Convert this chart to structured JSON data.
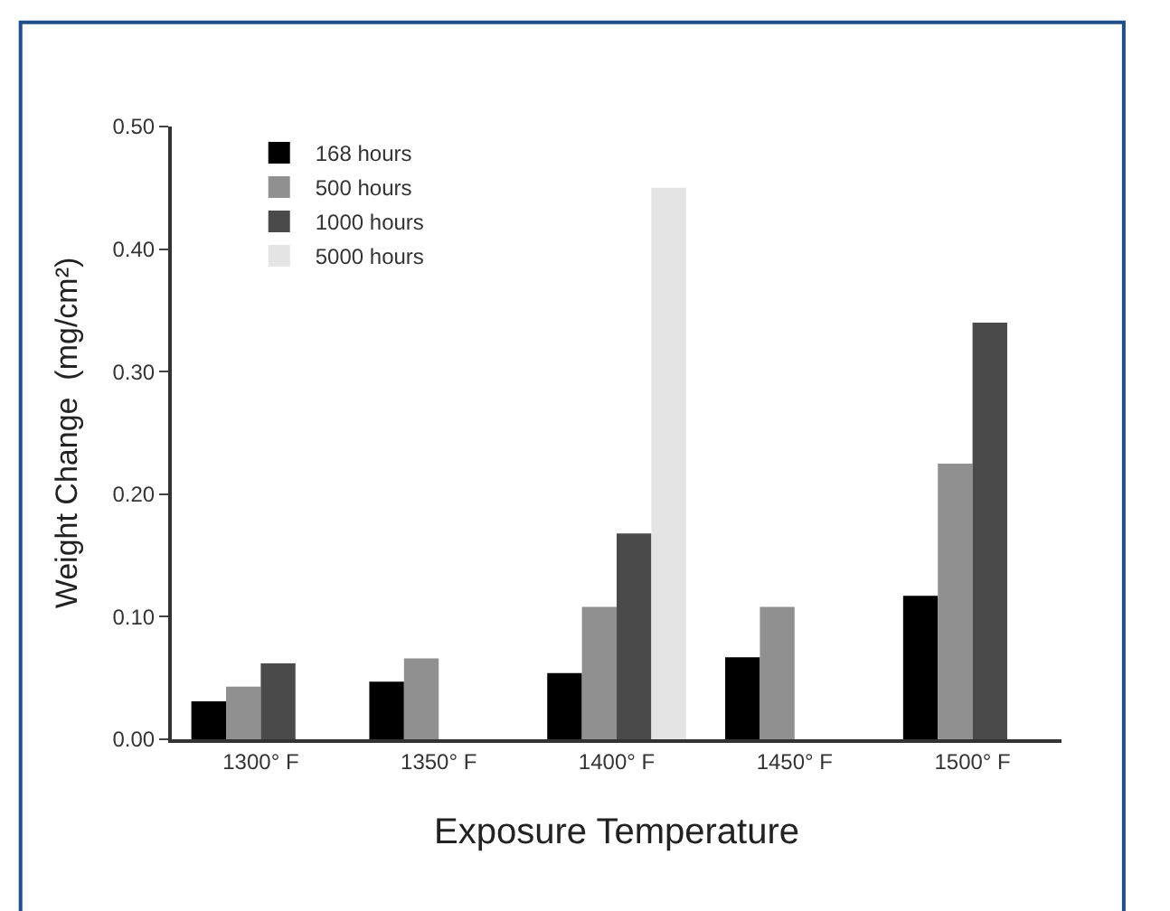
{
  "chart_data": {
    "type": "bar",
    "xlabel": "Exposure Temperature",
    "ylabel": "Weight Change  (mg/cm²)",
    "categories": [
      "1300° F",
      "1350° F",
      "1400° F",
      "1450° F",
      "1500° F"
    ],
    "series": [
      {
        "name": "168 hours",
        "color": "#000000",
        "values": [
          0.031,
          0.047,
          0.054,
          0.067,
          0.117
        ]
      },
      {
        "name": "500 hours",
        "color": "#909090",
        "values": [
          0.043,
          0.066,
          0.108,
          0.108,
          0.225
        ]
      },
      {
        "name": "1000 hours",
        "color": "#4a4a4a",
        "values": [
          0.062,
          null,
          0.168,
          null,
          0.34
        ]
      },
      {
        "name": "5000 hours",
        "color": "#e4e4e4",
        "values": [
          null,
          null,
          0.45,
          null,
          null
        ]
      }
    ],
    "ylim": [
      0,
      0.5
    ],
    "yticks": [
      {
        "value": 0,
        "label": "0.00"
      },
      {
        "value": 0.1,
        "label": "0.10"
      },
      {
        "value": 0.2,
        "label": "0.20"
      },
      {
        "value": 0.3,
        "label": "0.30"
      },
      {
        "value": 0.4,
        "label": "0.40"
      },
      {
        "value": 0.5,
        "label": "0.50"
      }
    ],
    "legend": "top left"
  }
}
